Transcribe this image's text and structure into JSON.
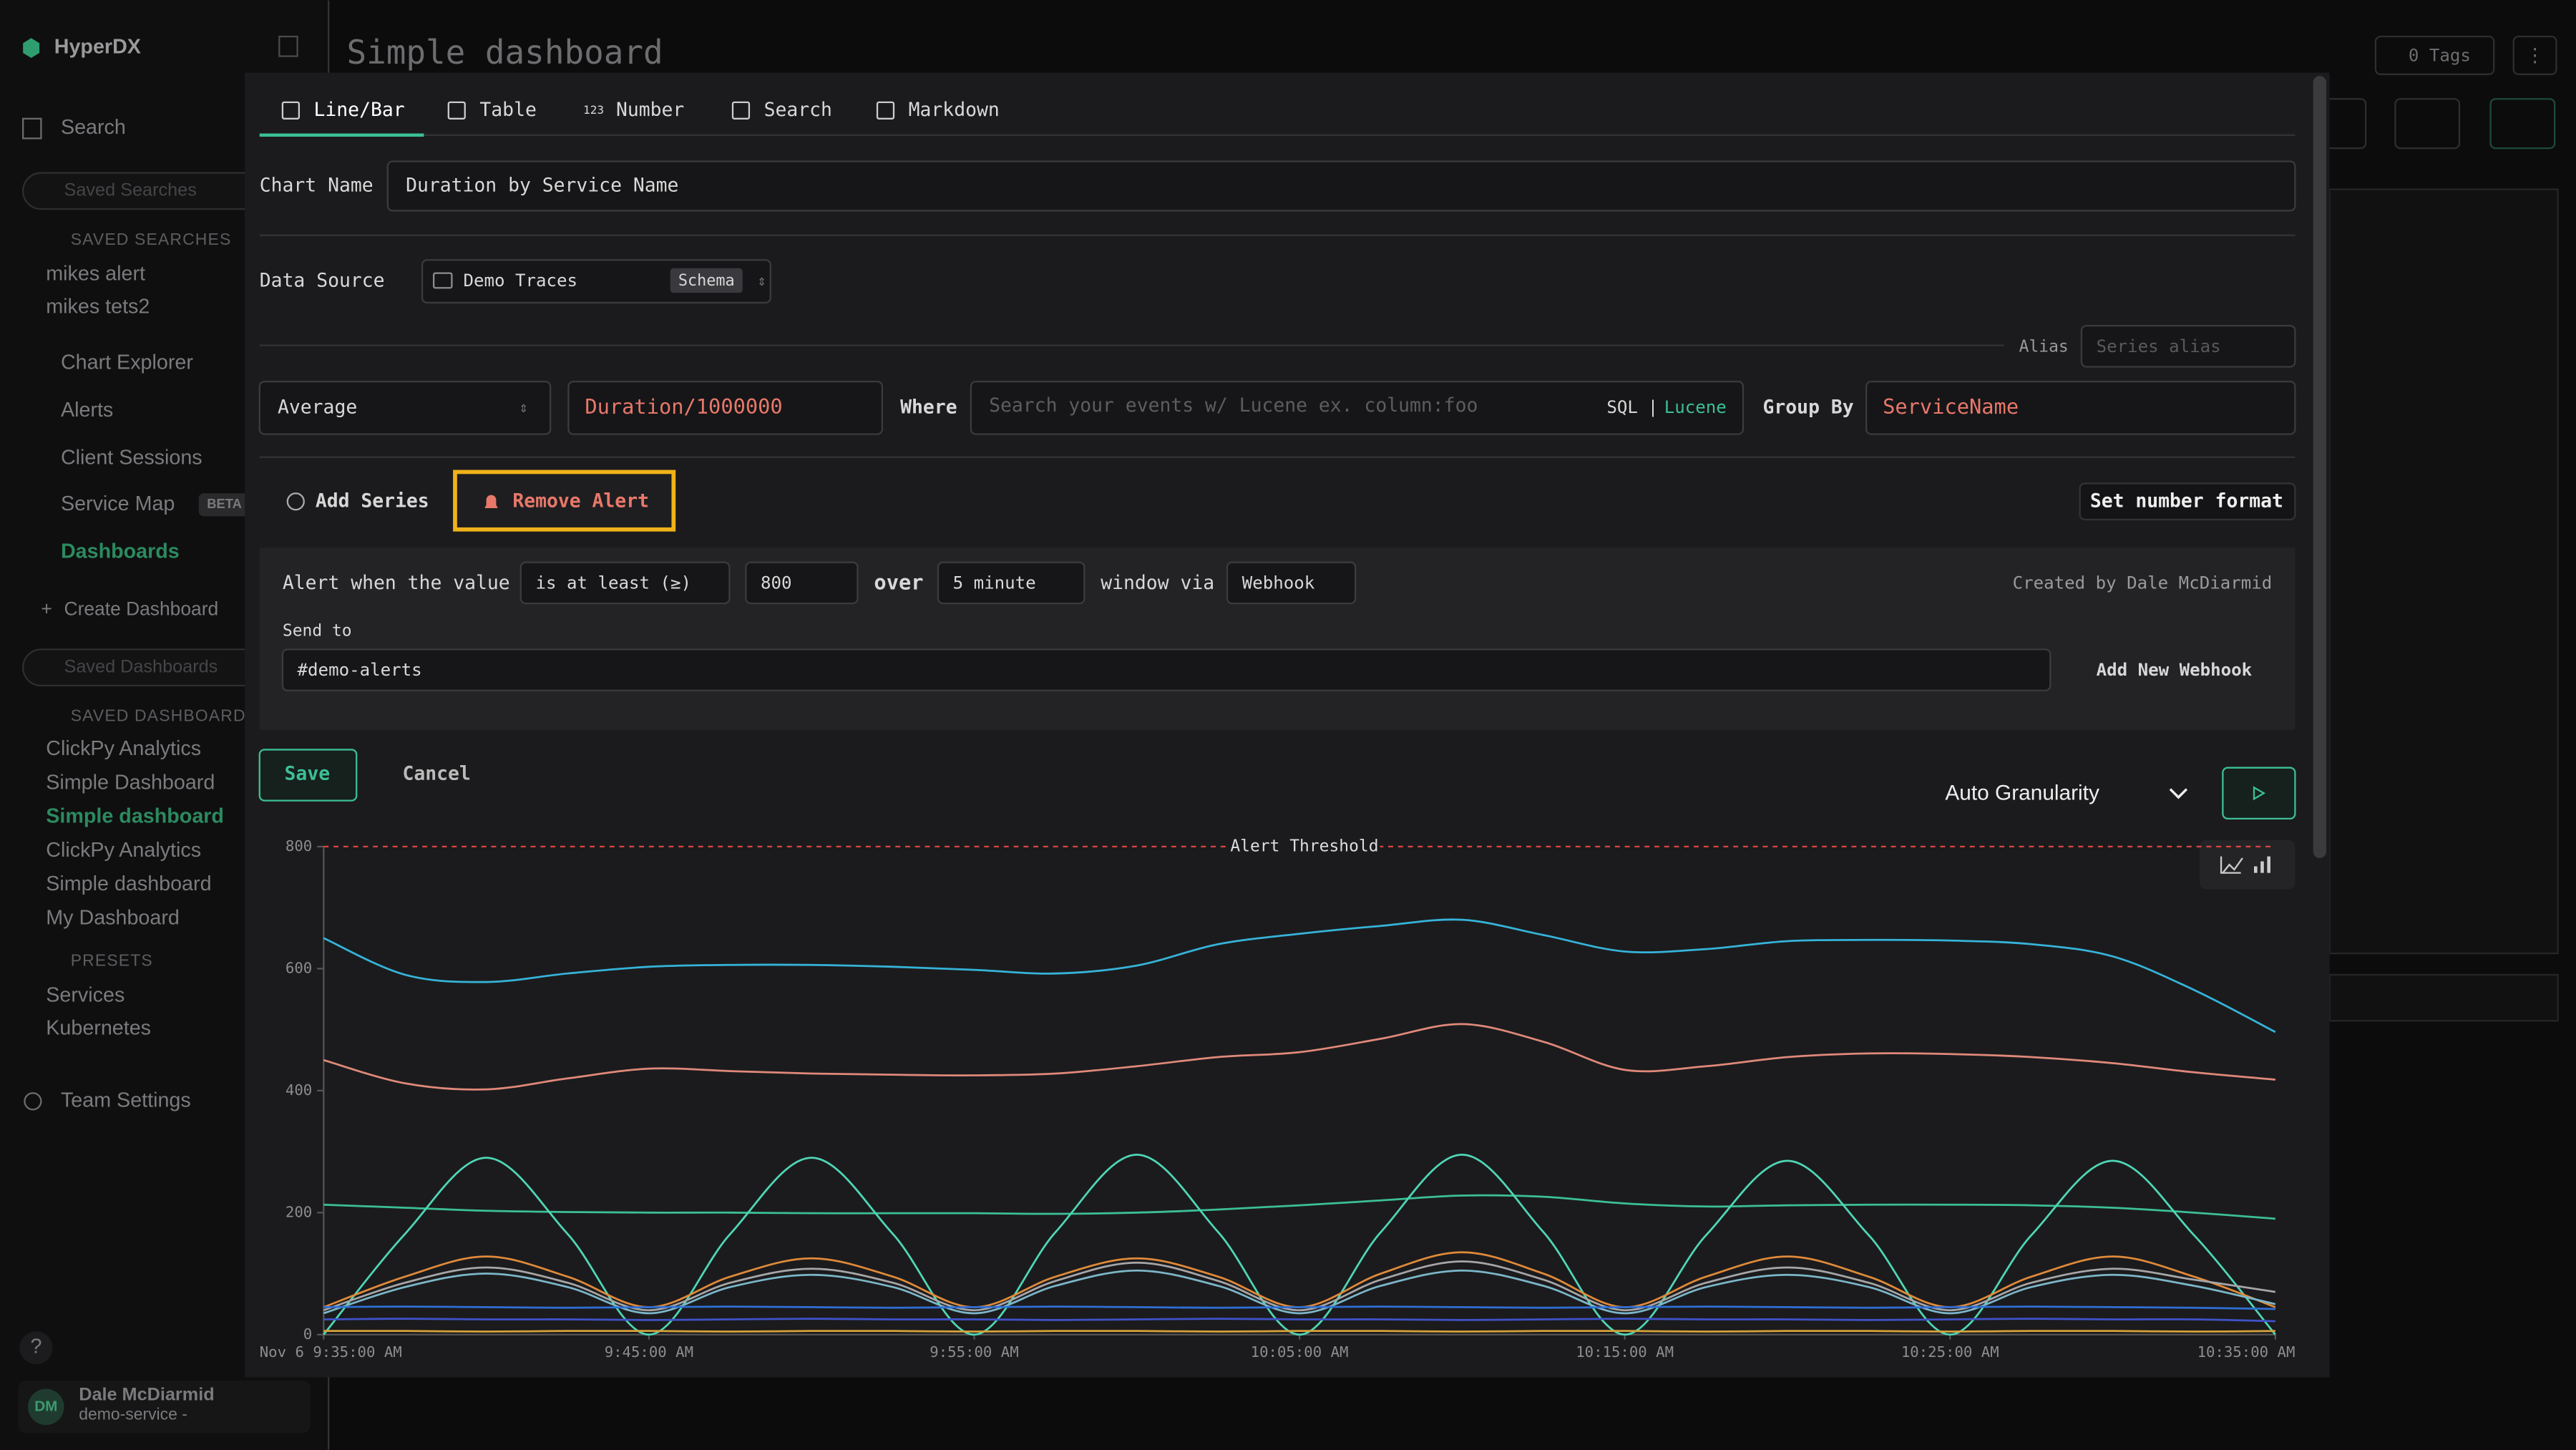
{
  "sidebar": {
    "brand": "HyperDX",
    "search": "Search",
    "saved_searches_placeholder": "Saved Searches",
    "saved_searches_heading": "SAVED SEARCHES",
    "saved_searches": [
      "mikes alert",
      "mikes tets2"
    ],
    "nav": [
      "Chart Explorer",
      "Alerts",
      "Client Sessions",
      "Service Map"
    ],
    "beta": "BETA",
    "dashboards": "Dashboards",
    "create_dashboard": "Create Dashboard",
    "saved_dashboards_placeholder": "Saved Dashboards",
    "saved_dashboards_heading": "SAVED DASHBOARDS",
    "saved_dashboards": [
      "ClickPy Analytics",
      "Simple Dashboard",
      "Simple dashboard",
      "ClickPy Analytics",
      "Simple dashboard",
      "My Dashboard"
    ],
    "presets_heading": "PRESETS",
    "presets": [
      "Services",
      "Kubernetes"
    ],
    "team_settings": "Team Settings",
    "help": "?",
    "user_initials": "DM",
    "user_name": "Dale McDiarmid",
    "user_team": "demo-service -"
  },
  "header": {
    "title": "Simple dashboard",
    "tags": "0 Tags"
  },
  "editor": {
    "tabs": [
      "Line/Bar",
      "Table",
      "Number",
      "Search",
      "Markdown"
    ],
    "number_icon": "123",
    "chart_name_label": "Chart Name",
    "chart_name": "Duration by Service Name",
    "data_source_label": "Data Source",
    "data_source": "Demo Traces",
    "schema": "Schema",
    "alias_label": "Alias",
    "alias_placeholder": "Series alias",
    "aggregation": "Average",
    "expression": "Duration/1000000",
    "where_label": "Where",
    "where_placeholder": "Search your events w/ Lucene ex. column:foo",
    "sql": "SQL",
    "separator": "|",
    "lucene": "Lucene",
    "group_by_label": "Group By",
    "group_by": "ServiceName",
    "add_series": "Add Series",
    "remove_alert": "Remove Alert",
    "set_number_format": "Set number format",
    "alert_when": "Alert when the value",
    "condition": "is at least (≥)",
    "over": "over",
    "window": "5 minute",
    "window_via": "window via",
    "channel": "Webhook",
    "created_by": "Created by Dale McDiarmid",
    "send_to_label": "Send to",
    "send_to": "#demo-alerts",
    "add_webhook": "Add New Webhook",
    "save": "Save",
    "cancel": "Cancel",
    "granularity": "Auto Granularity"
  },
  "chart_data": {
    "type": "line",
    "threshold": 800,
    "threshold_label": "Alert Threshold",
    "ylim": [
      0,
      800
    ],
    "yticks": [
      0,
      200,
      400,
      600,
      800
    ],
    "x": [
      "9:35:00 AM",
      "9:37:30 AM",
      "9:40:00 AM",
      "9:42:30 AM",
      "9:45:00 AM",
      "9:47:30 AM",
      "9:50:00 AM",
      "9:52:30 AM",
      "9:55:00 AM",
      "9:57:30 AM",
      "10:00:00 AM",
      "10:02:30 AM",
      "10:05:00 AM",
      "10:07:30 AM",
      "10:10:00 AM",
      "10:12:30 AM",
      "10:15:00 AM",
      "10:17:30 AM",
      "10:20:00 AM",
      "10:22:30 AM",
      "10:25:00 AM",
      "10:27:30 AM",
      "10:30:00 AM",
      "10:32:30 AM",
      "10:35:00 AM"
    ],
    "xticks": [
      {
        "value": "9:35:00 AM",
        "label": "Nov 6 9:35:00 AM"
      },
      "9:45:00 AM",
      "9:55:00 AM",
      "10:05:00 AM",
      "10:15:00 AM",
      "10:25:00 AM",
      "10:35:00 AM"
    ],
    "series": [
      {
        "color": "#36b3d9",
        "values": [
          650,
          590,
          578,
          592,
          603,
          606,
          606,
          603,
          598,
          592,
          605,
          640,
          657,
          670,
          680,
          655,
          628,
          632,
          645,
          647,
          646,
          640,
          620,
          565,
          496
        ]
      },
      {
        "color": "#e0897a",
        "values": [
          450,
          412,
          402,
          420,
          436,
          432,
          428,
          426,
          425,
          428,
          440,
          455,
          463,
          485,
          509,
          480,
          434,
          440,
          455,
          461,
          460,
          455,
          445,
          430,
          418
        ]
      },
      {
        "color": "#3cbf96",
        "values": [
          213,
          208,
          203,
          201,
          200,
          200,
          199,
          199,
          199,
          198,
          200,
          205,
          212,
          220,
          228,
          226,
          215,
          210,
          212,
          213,
          213,
          212,
          208,
          200,
          190
        ]
      },
      {
        "color": "#4fd6b5",
        "values": [
          0,
          165,
          290,
          165,
          0,
          165,
          290,
          165,
          0,
          168,
          295,
          168,
          0,
          168,
          295,
          168,
          0,
          163,
          285,
          163,
          0,
          163,
          285,
          163,
          0
        ]
      },
      {
        "color": "#e08a3a",
        "values": [
          45,
          95,
          128,
          95,
          45,
          95,
          125,
          95,
          45,
          95,
          125,
          95,
          45,
          100,
          135,
          100,
          45,
          95,
          128,
          95,
          45,
          95,
          128,
          95,
          45
        ]
      },
      {
        "color": "#a6a6a8",
        "values": [
          40,
          85,
          110,
          85,
          40,
          85,
          108,
          85,
          40,
          88,
          118,
          88,
          40,
          90,
          120,
          90,
          40,
          85,
          110,
          85,
          40,
          85,
          108,
          90,
          70
        ]
      },
      {
        "color": "#7cb6c9",
        "values": [
          35,
          78,
          100,
          78,
          35,
          78,
          98,
          78,
          35,
          80,
          105,
          80,
          35,
          80,
          105,
          80,
          35,
          78,
          98,
          78,
          35,
          78,
          98,
          80,
          50
        ]
      },
      {
        "color": "#2f6fd6",
        "values": [
          45,
          46,
          45,
          44,
          45,
          46,
          45,
          44,
          45,
          46,
          45,
          44,
          45,
          46,
          45,
          44,
          45,
          46,
          45,
          44,
          45,
          46,
          45,
          44,
          42
        ]
      },
      {
        "color": "#4052c9",
        "values": [
          25,
          26,
          25,
          25,
          24,
          25,
          26,
          25,
          25,
          24,
          25,
          26,
          25,
          25,
          24,
          25,
          26,
          25,
          25,
          24,
          25,
          26,
          25,
          25,
          22
        ]
      },
      {
        "color": "#d6a23a",
        "values": [
          6,
          6,
          5,
          6,
          6,
          5,
          6,
          6,
          5,
          6,
          6,
          5,
          6,
          6,
          5,
          6,
          6,
          5,
          6,
          6,
          5,
          6,
          6,
          5,
          6
        ]
      }
    ]
  }
}
